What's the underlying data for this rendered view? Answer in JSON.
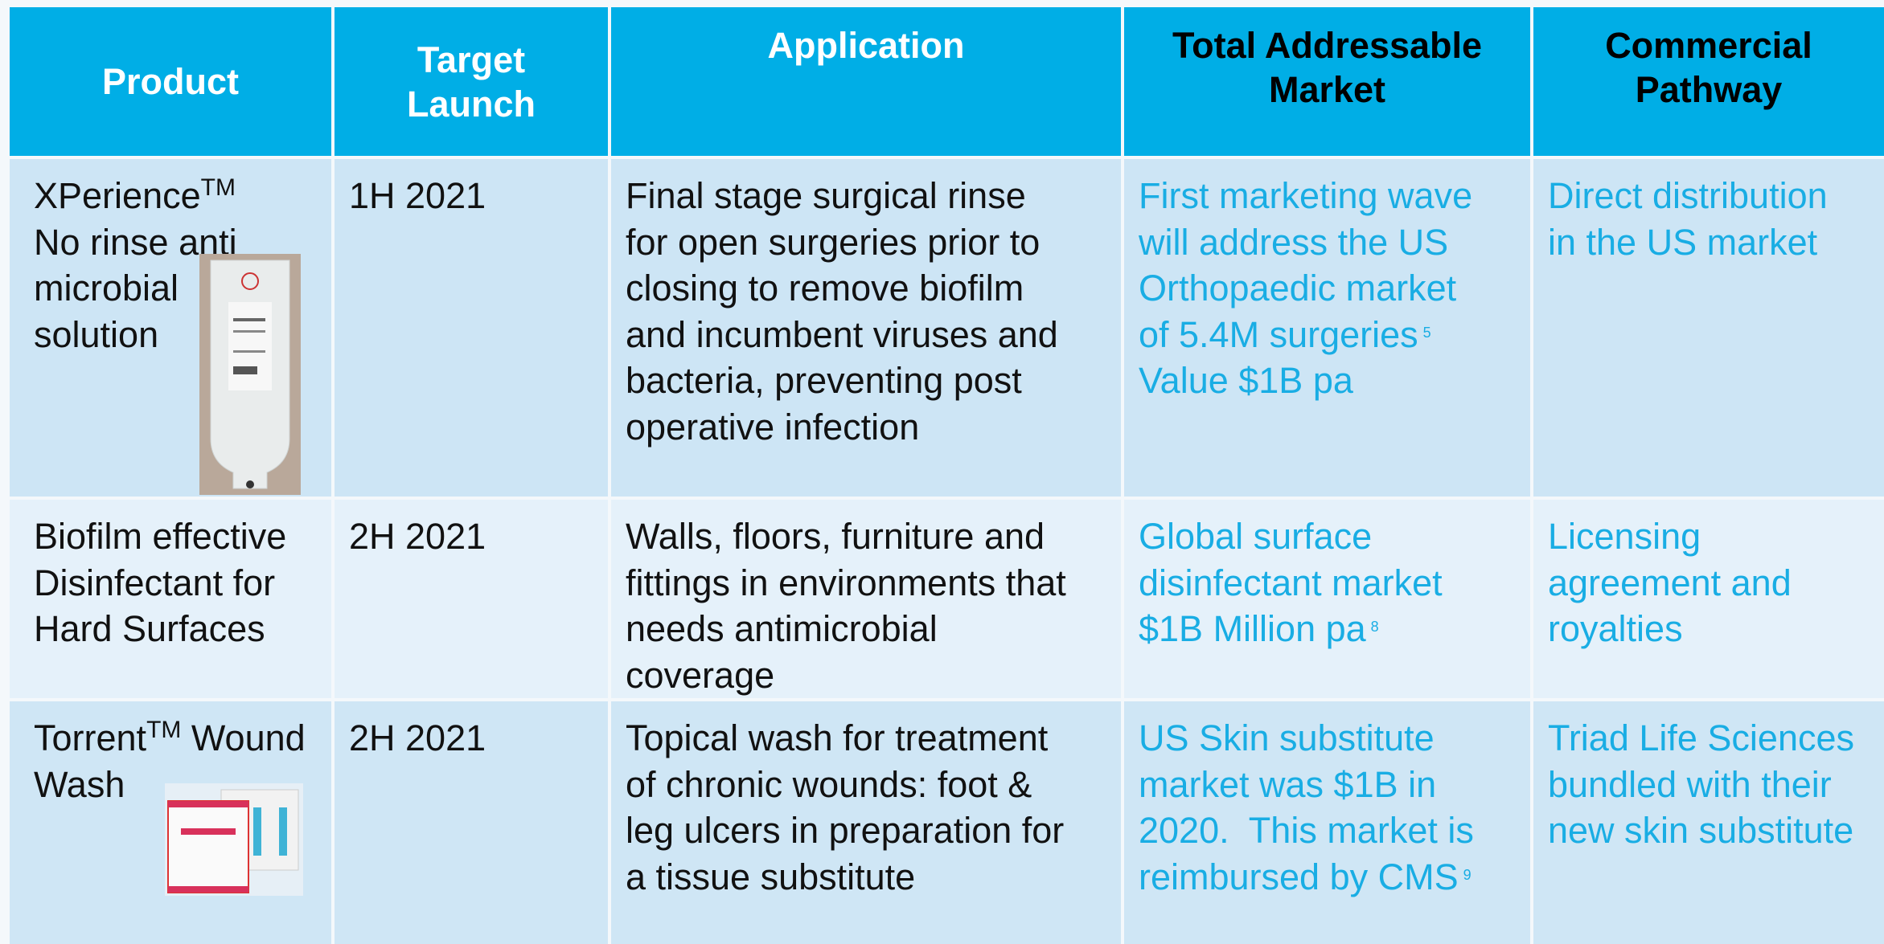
{
  "table": {
    "header": [
      [
        [
          {
            "text": "Product"
          }
        ]
      ],
      [
        [
          {
            "text": "Target"
          }
        ],
        [
          {
            "text": "Launch"
          }
        ]
      ],
      [
        [
          {
            "text": "Application"
          }
        ]
      ],
      [
        [
          {
            "text": "Total Addressable"
          }
        ],
        [
          {
            "text": "Market"
          }
        ]
      ],
      [
        [
          {
            "text": "Commercial"
          }
        ],
        [
          {
            "text": "Pathway"
          }
        ]
      ]
    ],
    "rows": [
      [
        [
          [
            {
              "text": "XPerience"
            },
            {
              "sup": "TM"
            }
          ],
          [
            {
              "text": "No rinse anti"
            }
          ],
          [
            {
              "text": "microbial"
            }
          ],
          [
            {
              "text": "solution"
            }
          ]
        ],
        [
          [
            {
              "text": "1H 2021"
            }
          ]
        ],
        [
          [
            {
              "text": "Final stage surgical rinse"
            }
          ],
          [
            {
              "text": "for open surgeries prior to"
            }
          ],
          [
            {
              "text": "closing to remove biofilm"
            }
          ],
          [
            {
              "text": "and incumbent viruses and"
            }
          ],
          [
            {
              "text": "bacteria, preventing post"
            }
          ],
          [
            {
              "text": "operative infection"
            }
          ]
        ],
        [
          [
            {
              "text": "First marketing wave"
            }
          ],
          [
            {
              "text": "will address the US"
            }
          ],
          [
            {
              "text": "Orthopaedic market"
            }
          ],
          [
            {
              "text": "of 5.4M surgeries"
            },
            {
              "sup": "5"
            }
          ],
          [
            {
              "text": "Value $1B pa"
            }
          ]
        ],
        [
          [
            {
              "text": "Direct distribution"
            }
          ],
          [
            {
              "text": "in the US market"
            }
          ]
        ]
      ],
      [
        [
          [
            {
              "text": "Biofilm effective"
            }
          ],
          [
            {
              "text": "Disinfectant for"
            }
          ],
          [
            {
              "text": "Hard Surfaces"
            }
          ]
        ],
        [
          [
            {
              "text": "2H 2021"
            }
          ]
        ],
        [
          [
            {
              "text": "Walls, floors, furniture and"
            }
          ],
          [
            {
              "text": "fittings in environments that"
            }
          ],
          [
            {
              "text": "needs antimicrobial"
            }
          ],
          [
            {
              "text": "coverage"
            }
          ]
        ],
        [
          [
            {
              "text": "Global surface"
            }
          ],
          [
            {
              "text": "disinfectant market"
            }
          ],
          [
            {
              "text": "$1B Million pa"
            },
            {
              "sup": "8"
            }
          ]
        ],
        [
          [
            {
              "text": "Licensing"
            }
          ],
          [
            {
              "text": "agreement and"
            }
          ],
          [
            {
              "text": "royalties"
            }
          ]
        ]
      ],
      [
        [
          [
            {
              "text": "Torrent"
            },
            {
              "sup": "TM"
            },
            {
              "text": " Wound"
            }
          ],
          [
            {
              "text": "Wash"
            }
          ]
        ],
        [
          [
            {
              "text": "2H 2021"
            }
          ]
        ],
        [
          [
            {
              "text": "Topical wash for treatment"
            }
          ],
          [
            {
              "text": "of chronic wounds: foot &"
            }
          ],
          [
            {
              "text": "leg ulcers in preparation for"
            }
          ],
          [
            {
              "text": "a tissue substitute"
            }
          ]
        ],
        [
          [
            {
              "text": "US Skin substitute"
            }
          ],
          [
            {
              "text": "market was $1B in"
            }
          ],
          [
            {
              "text": "2020.  This market is"
            }
          ],
          [
            {
              "text": "reimbursed by CMS"
            },
            {
              "sup": "9"
            }
          ]
        ],
        [
          [
            {
              "text": "Triad Life Sciences"
            }
          ],
          [
            {
              "text": "bundled with their"
            }
          ],
          [
            {
              "text": "new skin substitute"
            }
          ]
        ]
      ]
    ]
  }
}
